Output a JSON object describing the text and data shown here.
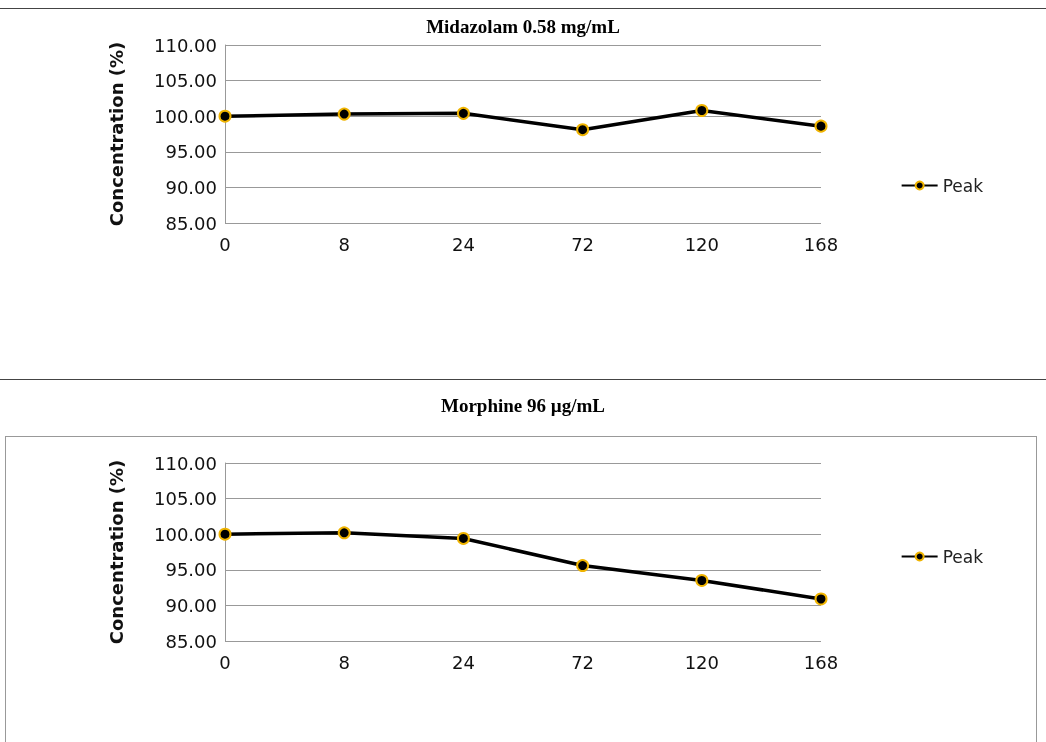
{
  "chart_data": [
    {
      "type": "line",
      "title": "Midazolam 0.58 mg/mL",
      "ylabel": "Concentration (%)",
      "categories": [
        "0",
        "8",
        "24",
        "72",
        "120",
        "168"
      ],
      "series": [
        {
          "name": "Peak",
          "color": "#000000",
          "values": [
            100.0,
            100.3,
            100.4,
            98.1,
            100.8,
            98.6
          ]
        }
      ],
      "ylim": [
        85,
        110
      ],
      "yticks": [
        {
          "value": 85,
          "label": "85.00"
        },
        {
          "value": 90,
          "label": "90.00"
        },
        {
          "value": 95,
          "label": "95.00"
        },
        {
          "value": 100,
          "label": "100.00"
        },
        {
          "value": 105,
          "label": "105.00"
        },
        {
          "value": 110,
          "label": "110.00"
        }
      ],
      "grid": "y",
      "legend": "right",
      "marker": "circle",
      "line_style": "solid"
    },
    {
      "type": "line",
      "title": "Morphine 96 µg/mL",
      "ylabel": "Concentration (%)",
      "categories": [
        "0",
        "8",
        "24",
        "72",
        "120",
        "168"
      ],
      "series": [
        {
          "name": "Peak",
          "color": "#000000",
          "values": [
            100.0,
            100.2,
            99.4,
            95.6,
            93.5,
            90.9
          ]
        }
      ],
      "ylim": [
        85,
        110
      ],
      "yticks": [
        {
          "value": 85,
          "label": "85.00"
        },
        {
          "value": 90,
          "label": "90.00"
        },
        {
          "value": 95,
          "label": "95.00"
        },
        {
          "value": 100,
          "label": "100.00"
        },
        {
          "value": 105,
          "label": "105.00"
        },
        {
          "value": 110,
          "label": "110.00"
        }
      ],
      "grid": "y",
      "legend": "right",
      "marker": "circle",
      "line_style": "solid"
    }
  ]
}
